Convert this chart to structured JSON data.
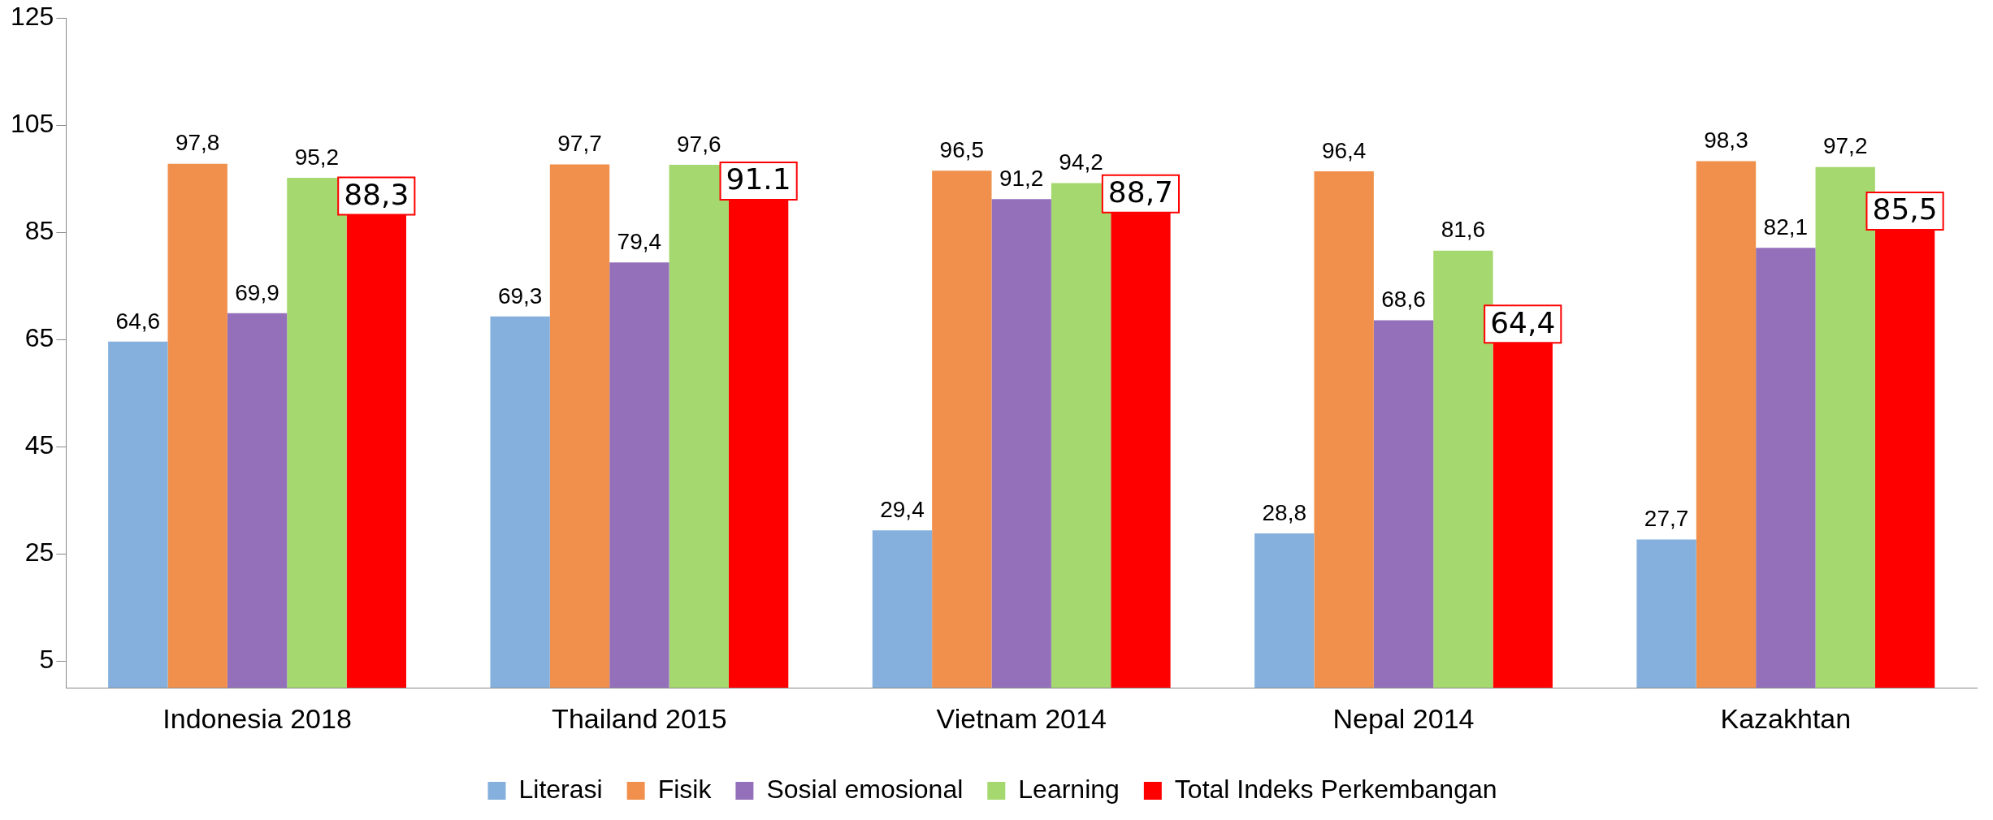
{
  "chart_data": {
    "type": "bar",
    "categories": [
      "Indonesia 2018",
      "Thailand 2015",
      "Vietnam 2014",
      "Nepal 2014",
      "Kazakhtan"
    ],
    "series": [
      {
        "name": "Literasi",
        "color": "#85b0dd",
        "values": [
          64.6,
          69.3,
          29.4,
          28.8,
          27.7
        ],
        "value_labels": [
          "64,6",
          "69,3",
          "29,4",
          "28,8",
          "27,7"
        ]
      },
      {
        "name": "Fisik",
        "color": "#f0904c",
        "values": [
          97.8,
          97.7,
          96.5,
          96.4,
          98.3
        ],
        "value_labels": [
          "97,8",
          "97,7",
          "96,5",
          "96,4",
          "98,3"
        ]
      },
      {
        "name": "Sosial emosional",
        "color": "#9470bb",
        "values": [
          69.9,
          79.4,
          91.2,
          68.6,
          82.1
        ],
        "value_labels": [
          "69,9",
          "79,4",
          "91,2",
          "68,6",
          "82,1"
        ]
      },
      {
        "name": "Learning",
        "color": "#a5d86f",
        "values": [
          95.2,
          97.6,
          94.2,
          81.6,
          97.2
        ],
        "value_labels": [
          "95,2",
          "97,6",
          "94,2",
          "81,6",
          "97,2"
        ]
      },
      {
        "name": "Total Indeks Perkembangan",
        "color": "#ff0000",
        "values": [
          88.3,
          91.1,
          88.7,
          64.4,
          85.5
        ],
        "value_labels": [
          "88,3",
          "91.1",
          "88,7",
          "64,4",
          "85,5"
        ]
      }
    ],
    "ylim": [
      0,
      125
    ],
    "yticks": [
      5,
      25,
      45,
      65,
      85,
      105,
      125
    ],
    "grid": false,
    "legend": "bottom"
  }
}
